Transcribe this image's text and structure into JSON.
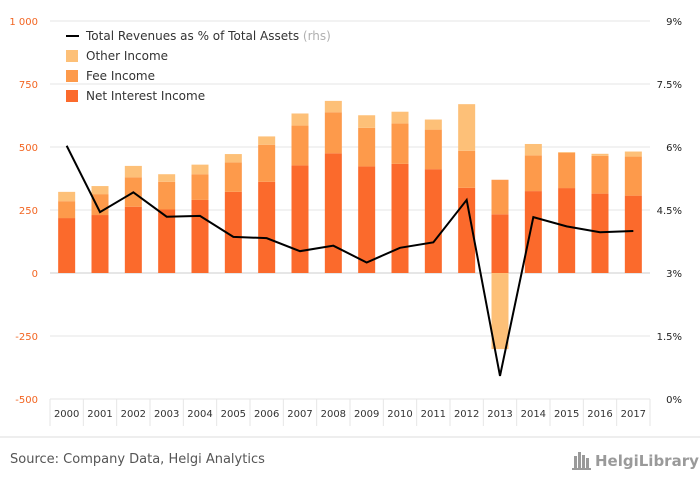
{
  "chart_data": {
    "type": "bar",
    "categories": [
      "2000",
      "2001",
      "2002",
      "2003",
      "2004",
      "2005",
      "2006",
      "2007",
      "2008",
      "2009",
      "2010",
      "2011",
      "2012",
      "2013",
      "2014",
      "2015",
      "2016",
      "2017"
    ],
    "series": [
      {
        "name": "Net Interest Income",
        "type": "bar",
        "axis": "left",
        "color": "#fb6a2c",
        "values": [
          218,
          230,
          263,
          252,
          290,
          322,
          362,
          427,
          475,
          423,
          433,
          412,
          338,
          233,
          325,
          337,
          315,
          307
        ]
      },
      {
        "name": "Fee Income",
        "type": "bar",
        "axis": "left",
        "color": "#fd9a4b",
        "values": [
          67,
          83,
          117,
          110,
          102,
          117,
          147,
          158,
          163,
          153,
          160,
          157,
          147,
          137,
          142,
          140,
          150,
          155
        ]
      },
      {
        "name": "Other Income",
        "type": "bar",
        "axis": "left",
        "color": "#fdc078",
        "values": [
          37,
          32,
          45,
          30,
          38,
          33,
          33,
          48,
          45,
          50,
          47,
          40,
          185,
          -302,
          45,
          3,
          8,
          20
        ]
      },
      {
        "name": "Total Revenues as % of Total Assets",
        "name_suffix": "(rhs)",
        "type": "line",
        "axis": "right",
        "color": "#000000",
        "values": [
          6.03,
          4.45,
          4.92,
          4.34,
          4.36,
          3.86,
          3.83,
          3.52,
          3.65,
          3.25,
          3.6,
          3.73,
          4.74,
          0.55,
          4.33,
          4.11,
          3.97,
          4.0
        ]
      }
    ],
    "y_left": {
      "ylim": [
        -500,
        1000
      ],
      "ticks": [
        1000,
        750,
        500,
        250,
        0,
        -250,
        -500
      ],
      "tick_labels": [
        "1 000",
        "750",
        "500",
        "250",
        "0",
        "-250",
        "-500"
      ]
    },
    "y_right": {
      "ylim": [
        0,
        9
      ],
      "ticks": [
        9,
        7.5,
        6,
        4.5,
        3,
        1.5,
        0
      ],
      "tick_labels": [
        "9%",
        "7.5%",
        "6%",
        "4.5%",
        "3%",
        "1.5%",
        "0%"
      ]
    },
    "grid": true,
    "legend_position": "top-left",
    "legend_order": [
      "Total Revenues as % of Total Assets",
      "Other Income",
      "Fee Income",
      "Net Interest Income"
    ]
  },
  "footer": {
    "source": "Source: Company Data, Helgi Analytics",
    "brand": "HelgiLibrary"
  },
  "colors": {
    "left_axis": "#f26522",
    "grid": "#e6e6e6",
    "zero_line": "#cccccc"
  }
}
